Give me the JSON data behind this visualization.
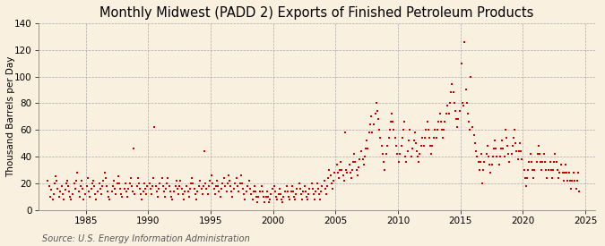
{
  "title": "Monthly Midwest (PADD 2) Exports of Finished Petroleum Products",
  "ylabel": "Thousand Barrels per Day",
  "source": "Source: U.S. Energy Information Administration",
  "background_color": "#faf0e0",
  "dot_color": "#cc0000",
  "dot_size": 3,
  "ylim": [
    0,
    140
  ],
  "yticks": [
    0,
    20,
    40,
    60,
    80,
    100,
    120,
    140
  ],
  "xlim": [
    1981.2,
    2025.8
  ],
  "xticks": [
    1985,
    1990,
    1995,
    2000,
    2005,
    2010,
    2015,
    2020,
    2025
  ],
  "grid_color": "#aaaaaa",
  "title_fontsize": 10.5,
  "ylabel_fontsize": 7.5,
  "tick_fontsize": 7.5,
  "source_fontsize": 7,
  "data": [
    [
      1981.917,
      22
    ],
    [
      1982.083,
      18
    ],
    [
      1982.167,
      10
    ],
    [
      1982.25,
      15
    ],
    [
      1982.333,
      8
    ],
    [
      1982.417,
      12
    ],
    [
      1982.5,
      20
    ],
    [
      1982.583,
      25
    ],
    [
      1982.667,
      22
    ],
    [
      1982.75,
      16
    ],
    [
      1982.833,
      10
    ],
    [
      1982.917,
      14
    ],
    [
      1983.083,
      18
    ],
    [
      1983.167,
      12
    ],
    [
      1983.25,
      8
    ],
    [
      1983.333,
      15
    ],
    [
      1983.417,
      20
    ],
    [
      1983.5,
      22
    ],
    [
      1983.583,
      18
    ],
    [
      1983.667,
      14
    ],
    [
      1983.75,
      10
    ],
    [
      1983.833,
      8
    ],
    [
      1983.917,
      12
    ],
    [
      1984.083,
      20
    ],
    [
      1984.167,
      16
    ],
    [
      1984.25,
      22
    ],
    [
      1984.333,
      28
    ],
    [
      1984.417,
      14
    ],
    [
      1984.5,
      10
    ],
    [
      1984.583,
      18
    ],
    [
      1984.667,
      22
    ],
    [
      1984.75,
      16
    ],
    [
      1984.833,
      8
    ],
    [
      1984.917,
      12
    ],
    [
      1985.083,
      18
    ],
    [
      1985.167,
      24
    ],
    [
      1985.25,
      14
    ],
    [
      1985.333,
      10
    ],
    [
      1985.417,
      16
    ],
    [
      1985.5,
      20
    ],
    [
      1985.583,
      22
    ],
    [
      1985.667,
      18
    ],
    [
      1985.75,
      12
    ],
    [
      1985.833,
      8
    ],
    [
      1985.917,
      14
    ],
    [
      1986.083,
      20
    ],
    [
      1986.167,
      16
    ],
    [
      1986.25,
      12
    ],
    [
      1986.333,
      18
    ],
    [
      1986.417,
      22
    ],
    [
      1986.5,
      28
    ],
    [
      1986.583,
      24
    ],
    [
      1986.667,
      18
    ],
    [
      1986.75,
      14
    ],
    [
      1986.833,
      10
    ],
    [
      1986.917,
      8
    ],
    [
      1987.083,
      14
    ],
    [
      1987.167,
      18
    ],
    [
      1987.25,
      22
    ],
    [
      1987.333,
      16
    ],
    [
      1987.417,
      12
    ],
    [
      1987.5,
      20
    ],
    [
      1987.583,
      25
    ],
    [
      1987.667,
      20
    ],
    [
      1987.75,
      16
    ],
    [
      1987.833,
      12
    ],
    [
      1987.917,
      10
    ],
    [
      1988.083,
      16
    ],
    [
      1988.167,
      20
    ],
    [
      1988.25,
      14
    ],
    [
      1988.333,
      10
    ],
    [
      1988.417,
      16
    ],
    [
      1988.5,
      20
    ],
    [
      1988.583,
      24
    ],
    [
      1988.667,
      18
    ],
    [
      1988.75,
      14
    ],
    [
      1988.833,
      46
    ],
    [
      1988.917,
      12
    ],
    [
      1989.083,
      18
    ],
    [
      1989.167,
      24
    ],
    [
      1989.25,
      20
    ],
    [
      1989.333,
      16
    ],
    [
      1989.417,
      12
    ],
    [
      1989.5,
      8
    ],
    [
      1989.583,
      14
    ],
    [
      1989.667,
      20
    ],
    [
      1989.75,
      16
    ],
    [
      1989.833,
      12
    ],
    [
      1989.917,
      18
    ],
    [
      1990.083,
      20
    ],
    [
      1990.167,
      16
    ],
    [
      1990.25,
      12
    ],
    [
      1990.333,
      18
    ],
    [
      1990.417,
      24
    ],
    [
      1990.5,
      62
    ],
    [
      1990.583,
      18
    ],
    [
      1990.667,
      14
    ],
    [
      1990.75,
      10
    ],
    [
      1990.833,
      16
    ],
    [
      1990.917,
      20
    ],
    [
      1991.083,
      24
    ],
    [
      1991.167,
      18
    ],
    [
      1991.25,
      14
    ],
    [
      1991.333,
      10
    ],
    [
      1991.417,
      16
    ],
    [
      1991.5,
      20
    ],
    [
      1991.583,
      24
    ],
    [
      1991.667,
      18
    ],
    [
      1991.75,
      14
    ],
    [
      1991.833,
      10
    ],
    [
      1991.917,
      8
    ],
    [
      1992.083,
      14
    ],
    [
      1992.167,
      18
    ],
    [
      1992.25,
      22
    ],
    [
      1992.333,
      16
    ],
    [
      1992.417,
      12
    ],
    [
      1992.5,
      18
    ],
    [
      1992.583,
      22
    ],
    [
      1992.667,
      16
    ],
    [
      1992.75,
      12
    ],
    [
      1992.833,
      8
    ],
    [
      1992.917,
      14
    ],
    [
      1993.083,
      18
    ],
    [
      1993.167,
      14
    ],
    [
      1993.25,
      10
    ],
    [
      1993.333,
      16
    ],
    [
      1993.417,
      20
    ],
    [
      1993.5,
      24
    ],
    [
      1993.583,
      20
    ],
    [
      1993.667,
      16
    ],
    [
      1993.75,
      12
    ],
    [
      1993.833,
      8
    ],
    [
      1993.917,
      14
    ],
    [
      1994.083,
      18
    ],
    [
      1994.167,
      22
    ],
    [
      1994.25,
      16
    ],
    [
      1994.333,
      12
    ],
    [
      1994.417,
      18
    ],
    [
      1994.5,
      44
    ],
    [
      1994.583,
      20
    ],
    [
      1994.667,
      16
    ],
    [
      1994.75,
      12
    ],
    [
      1994.833,
      18
    ],
    [
      1994.917,
      22
    ],
    [
      1995.083,
      26
    ],
    [
      1995.167,
      20
    ],
    [
      1995.25,
      16
    ],
    [
      1995.333,
      12
    ],
    [
      1995.417,
      18
    ],
    [
      1995.5,
      22
    ],
    [
      1995.583,
      18
    ],
    [
      1995.667,
      14
    ],
    [
      1995.75,
      10
    ],
    [
      1995.833,
      16
    ],
    [
      1995.917,
      20
    ],
    [
      1996.083,
      24
    ],
    [
      1996.167,
      18
    ],
    [
      1996.25,
      14
    ],
    [
      1996.333,
      20
    ],
    [
      1996.417,
      26
    ],
    [
      1996.5,
      22
    ],
    [
      1996.583,
      18
    ],
    [
      1996.667,
      14
    ],
    [
      1996.75,
      10
    ],
    [
      1996.833,
      16
    ],
    [
      1996.917,
      20
    ],
    [
      1997.083,
      24
    ],
    [
      1997.167,
      18
    ],
    [
      1997.25,
      14
    ],
    [
      1997.333,
      20
    ],
    [
      1997.417,
      26
    ],
    [
      1997.5,
      20
    ],
    [
      1997.583,
      16
    ],
    [
      1997.667,
      12
    ],
    [
      1997.75,
      8
    ],
    [
      1997.833,
      14
    ],
    [
      1997.917,
      18
    ],
    [
      1998.083,
      22
    ],
    [
      1998.167,
      16
    ],
    [
      1998.25,
      12
    ],
    [
      1998.333,
      8
    ],
    [
      1998.417,
      14
    ],
    [
      1998.5,
      18
    ],
    [
      1998.583,
      14
    ],
    [
      1998.667,
      10
    ],
    [
      1998.75,
      6
    ],
    [
      1998.833,
      10
    ],
    [
      1998.917,
      14
    ],
    [
      1999.083,
      18
    ],
    [
      1999.167,
      14
    ],
    [
      1999.25,
      10
    ],
    [
      1999.333,
      6
    ],
    [
      1999.417,
      10
    ],
    [
      1999.5,
      14
    ],
    [
      1999.583,
      10
    ],
    [
      1999.667,
      6
    ],
    [
      1999.75,
      8
    ],
    [
      1999.833,
      12
    ],
    [
      1999.917,
      16
    ],
    [
      2000.083,
      18
    ],
    [
      2000.167,
      14
    ],
    [
      2000.25,
      10
    ],
    [
      2000.333,
      8
    ],
    [
      2000.417,
      12
    ],
    [
      2000.5,
      16
    ],
    [
      2000.583,
      12
    ],
    [
      2000.667,
      8
    ],
    [
      2000.75,
      6
    ],
    [
      2000.833,
      10
    ],
    [
      2000.917,
      14
    ],
    [
      2001.083,
      18
    ],
    [
      2001.167,
      14
    ],
    [
      2001.25,
      10
    ],
    [
      2001.333,
      8
    ],
    [
      2001.417,
      14
    ],
    [
      2001.5,
      18
    ],
    [
      2001.583,
      14
    ],
    [
      2001.667,
      10
    ],
    [
      2001.75,
      8
    ],
    [
      2001.833,
      12
    ],
    [
      2001.917,
      16
    ],
    [
      2002.083,
      20
    ],
    [
      2002.167,
      16
    ],
    [
      2002.25,
      12
    ],
    [
      2002.333,
      8
    ],
    [
      2002.417,
      14
    ],
    [
      2002.5,
      18
    ],
    [
      2002.583,
      14
    ],
    [
      2002.667,
      10
    ],
    [
      2002.75,
      8
    ],
    [
      2002.833,
      12
    ],
    [
      2002.917,
      16
    ],
    [
      2003.083,
      20
    ],
    [
      2003.167,
      16
    ],
    [
      2003.25,
      12
    ],
    [
      2003.333,
      8
    ],
    [
      2003.417,
      14
    ],
    [
      2003.5,
      20
    ],
    [
      2003.583,
      16
    ],
    [
      2003.667,
      12
    ],
    [
      2003.75,
      8
    ],
    [
      2003.833,
      14
    ],
    [
      2003.917,
      18
    ],
    [
      2004.083,
      22
    ],
    [
      2004.167,
      16
    ],
    [
      2004.25,
      12
    ],
    [
      2004.333,
      18
    ],
    [
      2004.417,
      24
    ],
    [
      2004.5,
      30
    ],
    [
      2004.583,
      26
    ],
    [
      2004.667,
      20
    ],
    [
      2004.75,
      16
    ],
    [
      2004.833,
      22
    ],
    [
      2004.917,
      28
    ],
    [
      2005.083,
      34
    ],
    [
      2005.167,
      28
    ],
    [
      2005.25,
      24
    ],
    [
      2005.333,
      30
    ],
    [
      2005.417,
      36
    ],
    [
      2005.5,
      30
    ],
    [
      2005.583,
      26
    ],
    [
      2005.667,
      22
    ],
    [
      2005.75,
      58
    ],
    [
      2005.833,
      30
    ],
    [
      2005.917,
      28
    ],
    [
      2006.083,
      34
    ],
    [
      2006.167,
      28
    ],
    [
      2006.25,
      24
    ],
    [
      2006.333,
      30
    ],
    [
      2006.417,
      36
    ],
    [
      2006.5,
      42
    ],
    [
      2006.583,
      36
    ],
    [
      2006.667,
      30
    ],
    [
      2006.75,
      26
    ],
    [
      2006.833,
      32
    ],
    [
      2006.917,
      38
    ],
    [
      2007.083,
      44
    ],
    [
      2007.167,
      38
    ],
    [
      2007.25,
      34
    ],
    [
      2007.333,
      40
    ],
    [
      2007.417,
      46
    ],
    [
      2007.5,
      52
    ],
    [
      2007.583,
      46
    ],
    [
      2007.667,
      58
    ],
    [
      2007.75,
      64
    ],
    [
      2007.833,
      70
    ],
    [
      2007.917,
      58
    ],
    [
      2008.083,
      64
    ],
    [
      2008.167,
      72
    ],
    [
      2008.25,
      80
    ],
    [
      2008.333,
      74
    ],
    [
      2008.417,
      68
    ],
    [
      2008.5,
      60
    ],
    [
      2008.583,
      54
    ],
    [
      2008.667,
      48
    ],
    [
      2008.75,
      42
    ],
    [
      2008.833,
      36
    ],
    [
      2008.917,
      30
    ],
    [
      2009.083,
      42
    ],
    [
      2009.167,
      48
    ],
    [
      2009.25,
      54
    ],
    [
      2009.333,
      60
    ],
    [
      2009.417,
      66
    ],
    [
      2009.5,
      72
    ],
    [
      2009.583,
      66
    ],
    [
      2009.667,
      60
    ],
    [
      2009.75,
      54
    ],
    [
      2009.833,
      48
    ],
    [
      2009.917,
      42
    ],
    [
      2010.083,
      36
    ],
    [
      2010.167,
      42
    ],
    [
      2010.25,
      48
    ],
    [
      2010.333,
      54
    ],
    [
      2010.417,
      60
    ],
    [
      2010.5,
      66
    ],
    [
      2010.583,
      40
    ],
    [
      2010.667,
      36
    ],
    [
      2010.75,
      44
    ],
    [
      2010.833,
      52
    ],
    [
      2010.917,
      60
    ],
    [
      2011.083,
      40
    ],
    [
      2011.167,
      46
    ],
    [
      2011.25,
      52
    ],
    [
      2011.333,
      58
    ],
    [
      2011.417,
      50
    ],
    [
      2011.5,
      44
    ],
    [
      2011.583,
      40
    ],
    [
      2011.667,
      36
    ],
    [
      2011.75,
      42
    ],
    [
      2011.833,
      48
    ],
    [
      2011.917,
      54
    ],
    [
      2012.083,
      48
    ],
    [
      2012.167,
      54
    ],
    [
      2012.25,
      60
    ],
    [
      2012.333,
      66
    ],
    [
      2012.417,
      60
    ],
    [
      2012.5,
      54
    ],
    [
      2012.583,
      48
    ],
    [
      2012.667,
      42
    ],
    [
      2012.75,
      48
    ],
    [
      2012.833,
      54
    ],
    [
      2012.917,
      60
    ],
    [
      2013.083,
      54
    ],
    [
      2013.167,
      60
    ],
    [
      2013.25,
      66
    ],
    [
      2013.333,
      72
    ],
    [
      2013.417,
      66
    ],
    [
      2013.5,
      60
    ],
    [
      2013.583,
      54
    ],
    [
      2013.667,
      60
    ],
    [
      2013.75,
      66
    ],
    [
      2013.833,
      72
    ],
    [
      2013.917,
      78
    ],
    [
      2014.083,
      72
    ],
    [
      2014.167,
      80
    ],
    [
      2014.25,
      88
    ],
    [
      2014.333,
      94
    ],
    [
      2014.417,
      88
    ],
    [
      2014.5,
      80
    ],
    [
      2014.583,
      74
    ],
    [
      2014.667,
      68
    ],
    [
      2014.75,
      62
    ],
    [
      2014.833,
      68
    ],
    [
      2014.917,
      74
    ],
    [
      2015.083,
      110
    ],
    [
      2015.167,
      80
    ],
    [
      2015.25,
      78
    ],
    [
      2015.333,
      126
    ],
    [
      2015.417,
      90
    ],
    [
      2015.5,
      80
    ],
    [
      2015.583,
      72
    ],
    [
      2015.667,
      66
    ],
    [
      2015.75,
      60
    ],
    [
      2015.833,
      100
    ],
    [
      2015.917,
      62
    ],
    [
      2016.083,
      56
    ],
    [
      2016.167,
      50
    ],
    [
      2016.25,
      44
    ],
    [
      2016.333,
      40
    ],
    [
      2016.417,
      36
    ],
    [
      2016.5,
      30
    ],
    [
      2016.583,
      36
    ],
    [
      2016.667,
      42
    ],
    [
      2016.75,
      20
    ],
    [
      2016.833,
      30
    ],
    [
      2016.917,
      36
    ],
    [
      2017.083,
      42
    ],
    [
      2017.167,
      48
    ],
    [
      2017.25,
      40
    ],
    [
      2017.333,
      34
    ],
    [
      2017.417,
      28
    ],
    [
      2017.5,
      34
    ],
    [
      2017.583,
      40
    ],
    [
      2017.667,
      46
    ],
    [
      2017.75,
      52
    ],
    [
      2017.833,
      46
    ],
    [
      2017.917,
      40
    ],
    [
      2018.083,
      34
    ],
    [
      2018.167,
      40
    ],
    [
      2018.25,
      46
    ],
    [
      2018.333,
      52
    ],
    [
      2018.417,
      46
    ],
    [
      2018.5,
      40
    ],
    [
      2018.583,
      60
    ],
    [
      2018.667,
      54
    ],
    [
      2018.75,
      48
    ],
    [
      2018.833,
      42
    ],
    [
      2018.917,
      36
    ],
    [
      2019.083,
      42
    ],
    [
      2019.167,
      48
    ],
    [
      2019.25,
      54
    ],
    [
      2019.333,
      60
    ],
    [
      2019.417,
      50
    ],
    [
      2019.5,
      44
    ],
    [
      2019.583,
      38
    ],
    [
      2019.667,
      44
    ],
    [
      2019.75,
      50
    ],
    [
      2019.833,
      44
    ],
    [
      2019.917,
      38
    ],
    [
      2020.083,
      30
    ],
    [
      2020.167,
      24
    ],
    [
      2020.25,
      18
    ],
    [
      2020.333,
      24
    ],
    [
      2020.417,
      30
    ],
    [
      2020.5,
      36
    ],
    [
      2020.583,
      42
    ],
    [
      2020.667,
      36
    ],
    [
      2020.75,
      30
    ],
    [
      2020.833,
      24
    ],
    [
      2020.917,
      30
    ],
    [
      2021.083,
      36
    ],
    [
      2021.167,
      42
    ],
    [
      2021.25,
      48
    ],
    [
      2021.333,
      42
    ],
    [
      2021.417,
      36
    ],
    [
      2021.5,
      30
    ],
    [
      2021.583,
      36
    ],
    [
      2021.667,
      42
    ],
    [
      2021.75,
      36
    ],
    [
      2021.833,
      30
    ],
    [
      2021.917,
      24
    ],
    [
      2022.083,
      30
    ],
    [
      2022.167,
      36
    ],
    [
      2022.25,
      30
    ],
    [
      2022.333,
      24
    ],
    [
      2022.417,
      30
    ],
    [
      2022.5,
      36
    ],
    [
      2022.583,
      42
    ],
    [
      2022.667,
      36
    ],
    [
      2022.75,
      30
    ],
    [
      2022.833,
      24
    ],
    [
      2022.917,
      28
    ],
    [
      2023.083,
      34
    ],
    [
      2023.167,
      28
    ],
    [
      2023.25,
      22
    ],
    [
      2023.333,
      28
    ],
    [
      2023.417,
      34
    ],
    [
      2023.5,
      28
    ],
    [
      2023.583,
      22
    ],
    [
      2023.667,
      28
    ],
    [
      2023.75,
      22
    ],
    [
      2023.833,
      16
    ],
    [
      2023.917,
      22
    ],
    [
      2024.083,
      28
    ],
    [
      2024.167,
      22
    ],
    [
      2024.25,
      16
    ],
    [
      2024.333,
      22
    ],
    [
      2024.417,
      28
    ],
    [
      2024.5,
      14
    ]
  ]
}
